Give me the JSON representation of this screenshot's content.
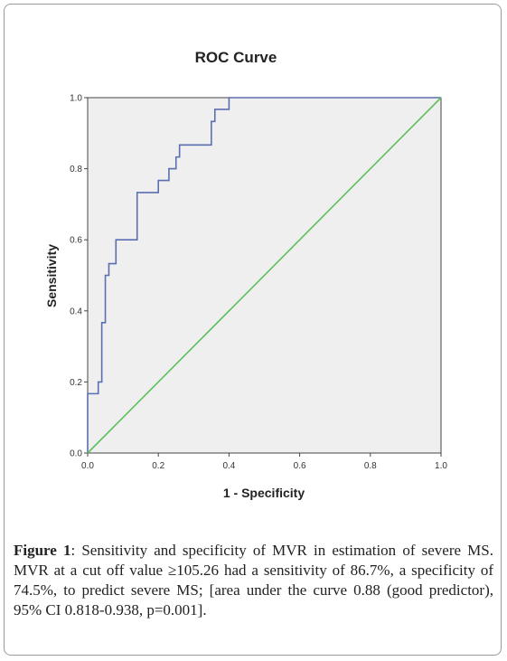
{
  "chart_data": {
    "type": "line",
    "title": "ROC Curve",
    "xlabel": "1 - Specificity",
    "ylabel": "Sensitivity",
    "xlim": [
      0.0,
      1.0
    ],
    "ylim": [
      0.0,
      1.0
    ],
    "xticks": [
      "0.0",
      "0.2",
      "0.4",
      "0.6",
      "0.8",
      "1.0"
    ],
    "yticks": [
      "0.0",
      "0.2",
      "0.4",
      "0.6",
      "0.8",
      "1.0"
    ],
    "grid": false,
    "series": [
      {
        "color": "#5b6fb0",
        "x": [
          0.0,
          0.0,
          0.03,
          0.03,
          0.04,
          0.04,
          0.05,
          0.05,
          0.06,
          0.06,
          0.08,
          0.08,
          0.14,
          0.14,
          0.2,
          0.2,
          0.23,
          0.23,
          0.25,
          0.25,
          0.26,
          0.26,
          0.35,
          0.35,
          0.36,
          0.36,
          0.4,
          0.4,
          1.0
        ],
        "y": [
          0.0,
          0.167,
          0.167,
          0.2,
          0.2,
          0.367,
          0.367,
          0.5,
          0.5,
          0.533,
          0.533,
          0.6,
          0.6,
          0.733,
          0.733,
          0.767,
          0.767,
          0.8,
          0.8,
          0.833,
          0.833,
          0.867,
          0.867,
          0.933,
          0.933,
          0.967,
          0.967,
          1.0,
          1.0
        ]
      },
      {
        "color": "#5cc05c",
        "x": [
          0.0,
          1.0
        ],
        "y": [
          0.0,
          1.0
        ]
      }
    ]
  },
  "caption": {
    "label": "Figure 1",
    "text": ": Sensitivity and specificity of MVR in estimation of severe MS. MVR at a cut off value ≥105.26 had a sensitivity of 86.7%, a specificity of 74.5%, to predict severe MS; [area under the curve 0.88 (good predictor), 95% CI 0.818-0.938, p=0.001]."
  }
}
